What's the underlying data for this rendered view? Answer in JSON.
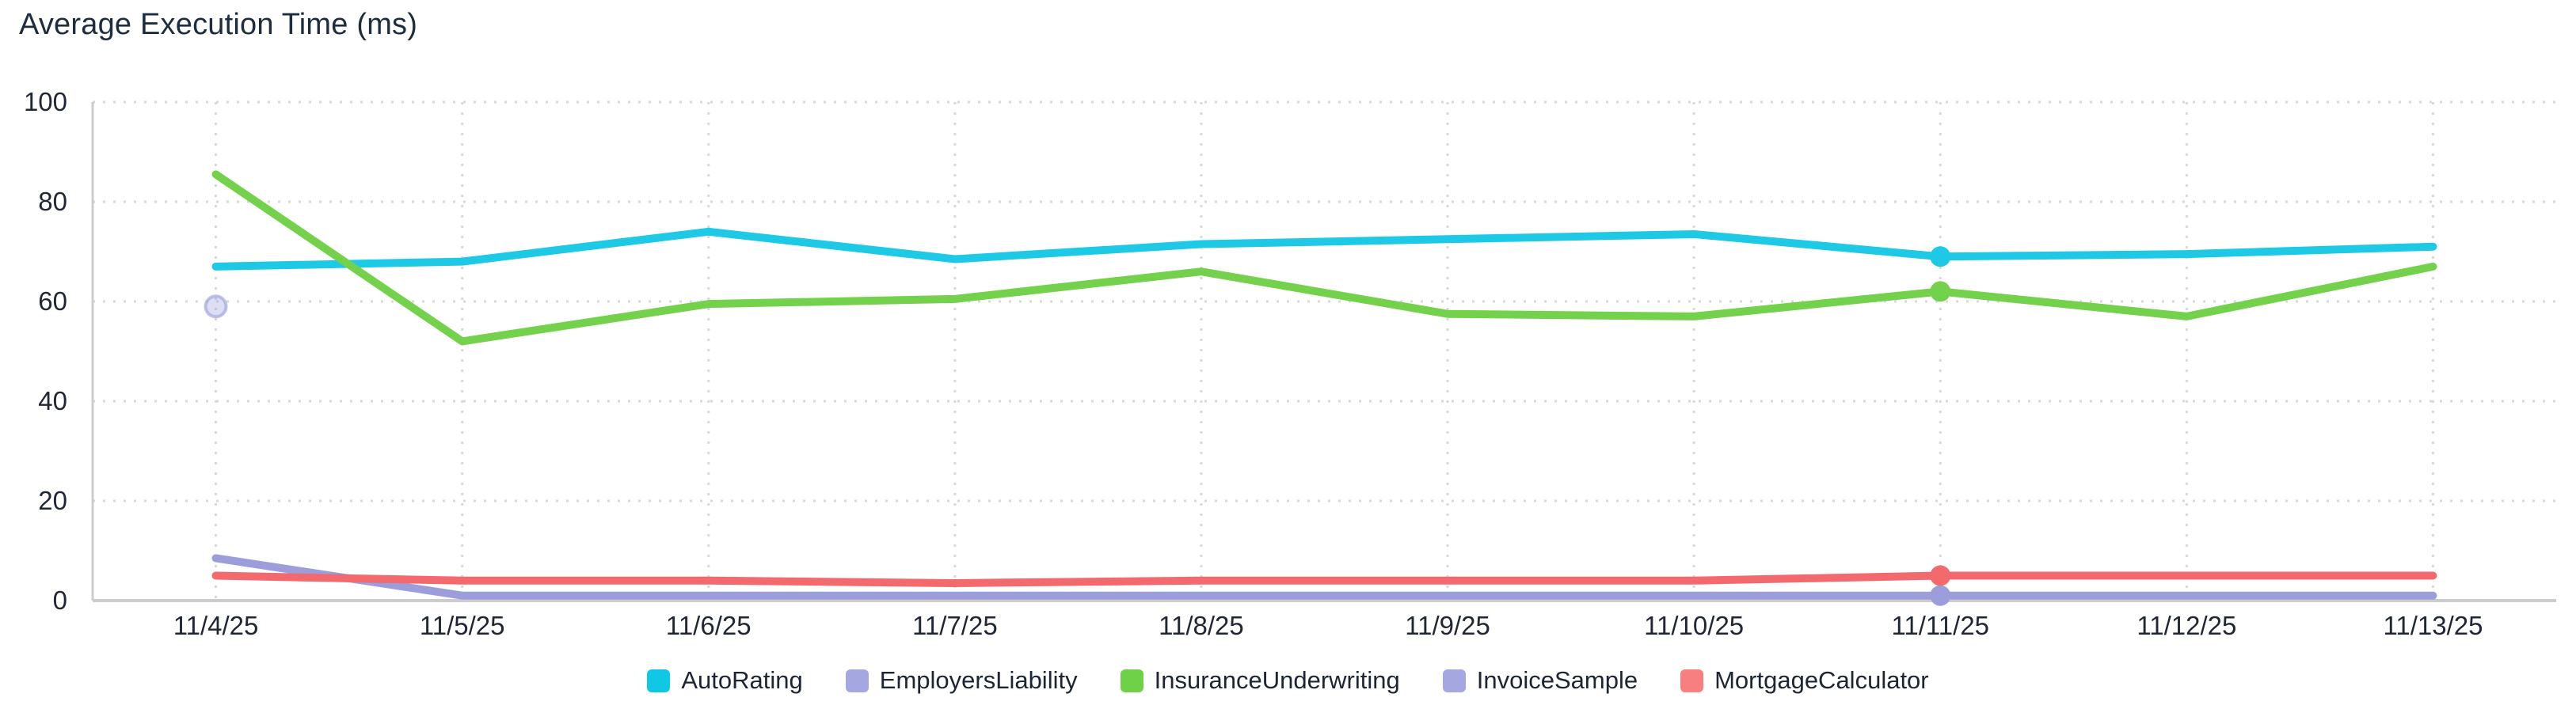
{
  "title": "Average Execution Time (ms)",
  "chart_data": {
    "type": "line",
    "title": "Average Execution Time (ms)",
    "categories": [
      "11/4/25",
      "11/5/25",
      "11/6/25",
      "11/7/25",
      "11/8/25",
      "11/9/25",
      "11/10/25",
      "11/11/25",
      "11/12/25",
      "11/13/25"
    ],
    "xlabel": "",
    "ylabel": "",
    "ylim": [
      0,
      100
    ],
    "y_ticks": [
      0,
      20,
      40,
      60,
      80,
      100
    ],
    "grid": "dotted",
    "legend_position": "bottom-center",
    "highlighted_category": "11/11/25",
    "colors": {
      "grid_dotted": "#d8d8d8",
      "axis_line": "#cccccc",
      "tick_text": "#1f2634",
      "title_text": "#1d2c3e"
    },
    "series": [
      {
        "name": "AutoRating",
        "color": "#1ec9e6",
        "legend_color": "#0fc8e6",
        "values": [
          67,
          68,
          74,
          68.5,
          71.5,
          72.5,
          73.5,
          69,
          69.5,
          71
        ],
        "markers": [
          7
        ],
        "marker_style": "solid"
      },
      {
        "name": "EmployersLiability",
        "color": "#9b9edb",
        "legend_color": "#a5a7e0",
        "values": [
          59,
          null,
          null,
          null,
          null,
          null,
          null,
          null,
          null,
          null
        ],
        "markers": [
          0
        ],
        "marker_style": "halo"
      },
      {
        "name": "InsuranceUnderwriting",
        "color": "#74d14b",
        "legend_color": "#6fd148",
        "values": [
          85.5,
          52,
          59.5,
          60.5,
          66,
          57.5,
          57,
          62,
          57,
          67
        ],
        "markers": [
          7
        ],
        "marker_style": "solid"
      },
      {
        "name": "InvoiceSample",
        "color": "#9b9edb",
        "legend_color": "#a5a7e0",
        "values": [
          8.5,
          1,
          1,
          1,
          1,
          1,
          1,
          1,
          1,
          1
        ],
        "markers": [
          7
        ],
        "marker_style": "solid"
      },
      {
        "name": "MortgageCalculator",
        "color": "#f2696e",
        "legend_color": "#f87f7f",
        "values": [
          5,
          4,
          4,
          3.5,
          4,
          4,
          4,
          5,
          5,
          5
        ],
        "markers": [
          7
        ],
        "marker_style": "solid"
      }
    ]
  }
}
